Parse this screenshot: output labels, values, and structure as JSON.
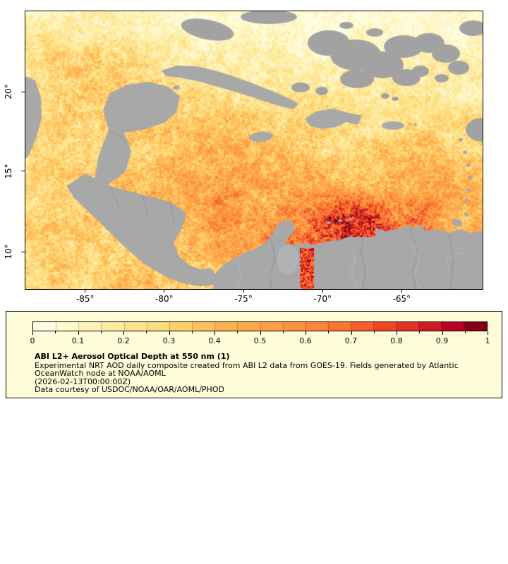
{
  "map": {
    "x_ticks": [
      {
        "label": "-85°",
        "pos": 0.1308
      },
      {
        "label": "-80°",
        "pos": 0.3038
      },
      {
        "label": "-75°",
        "pos": 0.4769
      },
      {
        "label": "-70°",
        "pos": 0.65
      },
      {
        "label": "-65°",
        "pos": 0.8231
      }
    ],
    "y_ticks": [
      {
        "label": "20°",
        "pos": 0.2904
      },
      {
        "label": "15°",
        "pos": 0.5758
      },
      {
        "label": "10°",
        "pos": 0.8662
      }
    ]
  },
  "colorbar": {
    "min": 0,
    "max": 1,
    "segments": 20,
    "tick_labels": [
      "0",
      "0.1",
      "0.2",
      "0.3",
      "0.4",
      "0.5",
      "0.6",
      "0.7",
      "0.8",
      "0.9",
      "1"
    ],
    "stops": [
      [
        0.0,
        "#ffffee"
      ],
      [
        0.1,
        "#fff7c2"
      ],
      [
        0.2,
        "#fee896"
      ],
      [
        0.3,
        "#fed976"
      ],
      [
        0.42,
        "#feb24c"
      ],
      [
        0.55,
        "#fd9a42"
      ],
      [
        0.65,
        "#fc7f38"
      ],
      [
        0.75,
        "#f35227"
      ],
      [
        0.85,
        "#dc2420"
      ],
      [
        0.93,
        "#b50026"
      ],
      [
        1.0,
        "#67000d"
      ]
    ]
  },
  "legend": {
    "title": "ABI L2+ Aerosol Optical Depth at 550 nm (1)",
    "lines": [
      "Experimental NRT AOD daily composite created from ABI L2 data from GOES-19. Fields generated by Atlantic",
      "OceanWatch node at NOAA/AOML",
      "(2026-02-13T00:00:00Z)",
      "Data courtesy of USDOC/NOAA/OAR/AOML/PHOD"
    ]
  },
  "colors": {
    "land": "#a8a8a8",
    "cloud": "#a2a2a2",
    "river": "#9cc3e6",
    "border_line": "#8a8a8a",
    "lake": "#b2b2b2",
    "frame": "#000000",
    "legend_bg": "#fffcd9"
  }
}
